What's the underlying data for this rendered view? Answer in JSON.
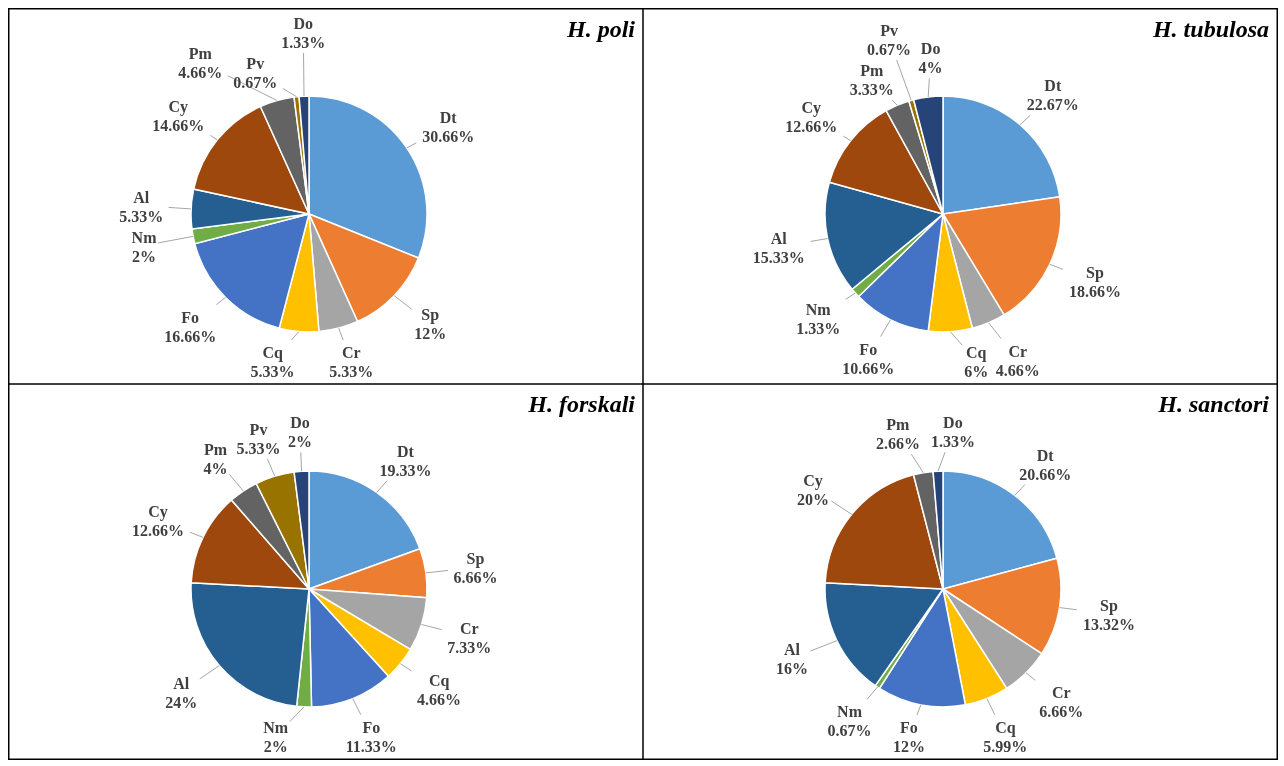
{
  "chart_data": [
    {
      "type": "pie",
      "title": "H. poli",
      "categories": [
        "Dt",
        "Sp",
        "Cr",
        "Cq",
        "Fo",
        "Nm",
        "Al",
        "Cy",
        "Pm",
        "Pv",
        "Do"
      ],
      "values": [
        30.66,
        12,
        5.33,
        5.33,
        16.66,
        2,
        5.33,
        14.66,
        4.66,
        0.67,
        1.33
      ],
      "value_labels": [
        "30.66%",
        "12%",
        "5.33%",
        "5.33%",
        "16.66%",
        "2%",
        "5.33%",
        "14.66%",
        "4.66%",
        "0.67%",
        "1.33%"
      ],
      "colors": [
        "#5b9bd5",
        "#ed7d31",
        "#a5a5a5",
        "#ffc000",
        "#4472c4",
        "#70ad47",
        "#255e91",
        "#9e480e",
        "#636363",
        "#997300",
        "#264478"
      ]
    },
    {
      "type": "pie",
      "title": "H. tubulosa",
      "categories": [
        "Dt",
        "Sp",
        "Cr",
        "Cq",
        "Fo",
        "Nm",
        "Al",
        "Cy",
        "Pm",
        "Pv",
        "Do"
      ],
      "values": [
        22.67,
        18.66,
        4.66,
        6,
        10.66,
        1.33,
        15.33,
        12.66,
        3.33,
        0.67,
        4
      ],
      "value_labels": [
        "22.67%",
        "18.66%",
        "4.66%",
        "6%",
        "10.66%",
        "1.33%",
        "15.33%",
        "12.66%",
        "3.33%",
        "0.67%",
        "4%"
      ],
      "colors": [
        "#5b9bd5",
        "#ed7d31",
        "#a5a5a5",
        "#ffc000",
        "#4472c4",
        "#70ad47",
        "#255e91",
        "#9e480e",
        "#636363",
        "#997300",
        "#264478"
      ]
    },
    {
      "type": "pie",
      "title": "H. forskali",
      "categories": [
        "Dt",
        "Sp",
        "Cr",
        "Cq",
        "Fo",
        "Nm",
        "Al",
        "Cy",
        "Pm",
        "Pv",
        "Do"
      ],
      "values": [
        19.33,
        6.66,
        7.33,
        4.66,
        11.33,
        2,
        24,
        12.66,
        4,
        5.33,
        2
      ],
      "value_labels": [
        "19.33%",
        "6.66%",
        "7.33%",
        "4.66%",
        "11.33%",
        "2%",
        "24%",
        "12.66%",
        "4%",
        "5.33%",
        "2%"
      ],
      "colors": [
        "#5b9bd5",
        "#ed7d31",
        "#a5a5a5",
        "#ffc000",
        "#4472c4",
        "#70ad47",
        "#255e91",
        "#9e480e",
        "#636363",
        "#997300",
        "#264478"
      ]
    },
    {
      "type": "pie",
      "title": "H. sanctori",
      "categories": [
        "Dt",
        "Sp",
        "Cr",
        "Cq",
        "Fo",
        "Nm",
        "Al",
        "Cy",
        "Pm",
        "Do"
      ],
      "values": [
        20.66,
        13.32,
        6.66,
        5.99,
        12,
        0.67,
        16,
        20,
        2.66,
        1.33
      ],
      "value_labels": [
        "20.66%",
        "13.32%",
        "6.66%",
        "5.99%",
        "12%",
        "0.67%",
        "16%",
        "20%",
        "2.66%",
        "1.33%"
      ],
      "colors": [
        "#5b9bd5",
        "#ed7d31",
        "#a5a5a5",
        "#ffc000",
        "#4472c4",
        "#70ad47",
        "#255e91",
        "#9e480e",
        "#636363",
        "#264478"
      ]
    }
  ]
}
